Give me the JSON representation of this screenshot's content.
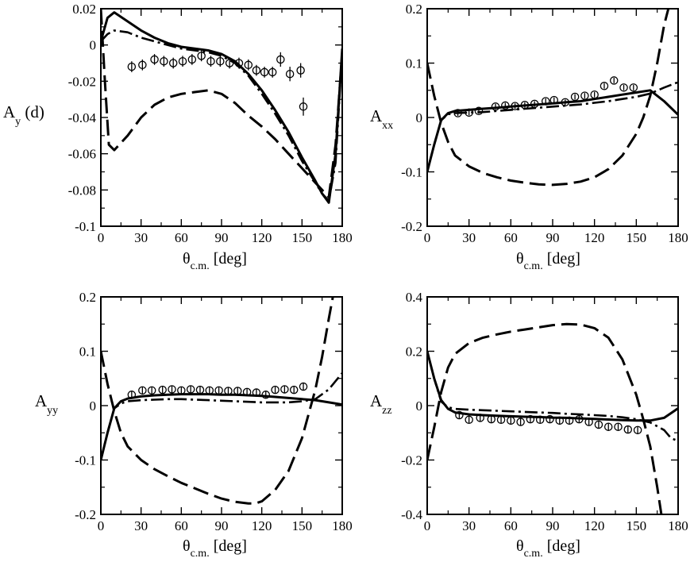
{
  "figure": {
    "background": "#ffffff",
    "ink": "#000000"
  },
  "chart_data": [
    {
      "type": "line",
      "panel": "top-left",
      "ylabel_main": "A",
      "ylabel_sub": "y",
      "ylabel_suffix": " (d)",
      "xlabel_main": "θ",
      "xlabel_sub": "c.m.",
      "xlabel_suffix": " [deg]",
      "xlim": [
        0,
        180
      ],
      "ylim": [
        -0.1,
        0.02
      ],
      "xticks": [
        0,
        30,
        60,
        90,
        120,
        150,
        180
      ],
      "xtick_labels": [
        "0",
        "30",
        "60",
        "90",
        "120",
        "150",
        "180"
      ],
      "yticks": [
        -0.1,
        -0.08,
        -0.06,
        -0.04,
        -0.02,
        0,
        0.02
      ],
      "ytick_labels": [
        "-0.1",
        "-0.08",
        "-0.06",
        "-0.04",
        "-0.02",
        "0",
        "0.02"
      ],
      "series": [
        {
          "name": "solid",
          "style": "solid",
          "x": [
            0,
            5,
            10,
            20,
            30,
            40,
            50,
            60,
            70,
            80,
            90,
            100,
            110,
            120,
            130,
            140,
            150,
            160,
            165,
            170,
            175,
            180
          ],
          "y": [
            0.002,
            0.015,
            0.018,
            0.013,
            0.008,
            0.004,
            0.001,
            -0.001,
            -0.002,
            -0.003,
            -0.005,
            -0.009,
            -0.016,
            -0.025,
            -0.036,
            -0.048,
            -0.062,
            -0.075,
            -0.082,
            -0.087,
            -0.06,
            -0.002
          ]
        },
        {
          "name": "dash-dot",
          "style": "dashdot",
          "x": [
            0,
            5,
            10,
            20,
            30,
            40,
            50,
            60,
            70,
            80,
            90,
            100,
            110,
            120,
            130,
            140,
            150,
            160,
            165,
            170,
            175,
            180
          ],
          "y": [
            0.002,
            0.006,
            0.008,
            0.007,
            0.004,
            0.002,
            0.0,
            -0.002,
            -0.003,
            -0.004,
            -0.006,
            -0.01,
            -0.017,
            -0.027,
            -0.038,
            -0.05,
            -0.064,
            -0.076,
            -0.082,
            -0.086,
            -0.065,
            -0.004
          ]
        },
        {
          "name": "dashed",
          "style": "dashed",
          "x": [
            0,
            3,
            6,
            10,
            20,
            30,
            40,
            50,
            60,
            70,
            80,
            90,
            100,
            110,
            120,
            130,
            140,
            150,
            160,
            165,
            170,
            175,
            180
          ],
          "y": [
            0.02,
            -0.02,
            -0.055,
            -0.058,
            -0.05,
            -0.04,
            -0.033,
            -0.029,
            -0.027,
            -0.026,
            -0.025,
            -0.027,
            -0.032,
            -0.039,
            -0.045,
            -0.052,
            -0.06,
            -0.068,
            -0.076,
            -0.08,
            -0.084,
            -0.055,
            -0.005
          ]
        }
      ],
      "points": {
        "x": [
          23,
          31,
          40,
          47,
          54,
          61,
          68,
          75,
          82,
          89,
          96,
          103,
          110,
          116,
          122,
          128,
          134,
          141,
          149
        ],
        "y": [
          -0.012,
          -0.011,
          -0.008,
          -0.009,
          -0.01,
          -0.009,
          -0.008,
          -0.006,
          -0.009,
          -0.009,
          -0.01,
          -0.01,
          -0.011,
          -0.014,
          -0.015,
          -0.015,
          -0.008,
          -0.016,
          -0.014
        ],
        "err": [
          0.003,
          0.003,
          0.003,
          0.003,
          0.003,
          0.003,
          0.003,
          0.003,
          0.003,
          0.003,
          0.003,
          0.003,
          0.003,
          0.003,
          0.003,
          0.003,
          0.004,
          0.004,
          0.004
        ]
      },
      "extra_point": {
        "x": 151,
        "y": -0.034,
        "err": 0.005
      }
    },
    {
      "type": "line",
      "panel": "top-right",
      "ylabel_main": "A",
      "ylabel_sub": "xx",
      "ylabel_suffix": "",
      "xlabel_main": "θ",
      "xlabel_sub": "c.m.",
      "xlabel_suffix": " [deg]",
      "xlim": [
        0,
        180
      ],
      "ylim": [
        -0.2,
        0.2
      ],
      "xticks": [
        0,
        30,
        60,
        90,
        120,
        150,
        180
      ],
      "xtick_labels": [
        "0",
        "30",
        "60",
        "90",
        "120",
        "150",
        "180"
      ],
      "yticks": [
        -0.2,
        -0.1,
        0,
        0.1,
        0.2
      ],
      "ytick_labels": [
        "-0.2",
        "-0.1",
        "0",
        "0.1",
        "0.2"
      ],
      "series": [
        {
          "name": "solid",
          "style": "solid",
          "x": [
            0,
            5,
            10,
            15,
            20,
            30,
            40,
            50,
            60,
            70,
            80,
            90,
            100,
            110,
            120,
            130,
            140,
            150,
            160,
            170,
            180
          ],
          "y": [
            -0.1,
            -0.05,
            -0.005,
            0.008,
            0.012,
            0.014,
            0.016,
            0.018,
            0.02,
            0.022,
            0.024,
            0.026,
            0.028,
            0.03,
            0.034,
            0.038,
            0.042,
            0.046,
            0.05,
            0.03,
            0.005
          ]
        },
        {
          "name": "dash-dot",
          "style": "dashdot",
          "x": [
            0,
            5,
            10,
            15,
            20,
            30,
            40,
            50,
            60,
            70,
            80,
            90,
            100,
            110,
            120,
            130,
            140,
            150,
            160,
            170,
            180
          ],
          "y": [
            -0.1,
            -0.05,
            -0.005,
            0.006,
            0.008,
            0.009,
            0.01,
            0.012,
            0.014,
            0.016,
            0.018,
            0.02,
            0.022,
            0.024,
            0.027,
            0.03,
            0.034,
            0.038,
            0.044,
            0.055,
            0.065
          ]
        },
        {
          "name": "dashed",
          "style": "dashed",
          "x": [
            0,
            5,
            10,
            15,
            20,
            30,
            40,
            50,
            60,
            70,
            80,
            90,
            100,
            110,
            120,
            130,
            140,
            150,
            155,
            160,
            165,
            170,
            173
          ],
          "y": [
            0.1,
            0.04,
            -0.01,
            -0.045,
            -0.07,
            -0.09,
            -0.102,
            -0.11,
            -0.116,
            -0.12,
            -0.123,
            -0.124,
            -0.122,
            -0.118,
            -0.11,
            -0.095,
            -0.07,
            -0.03,
            0.0,
            0.04,
            0.1,
            0.17,
            0.2
          ]
        }
      ],
      "points": {
        "x": [
          22,
          30,
          37,
          49,
          56,
          63,
          70,
          77,
          85,
          91,
          99,
          106,
          113,
          120,
          127,
          134,
          141,
          148
        ],
        "y": [
          0.008,
          0.009,
          0.012,
          0.02,
          0.022,
          0.021,
          0.023,
          0.025,
          0.03,
          0.032,
          0.028,
          0.038,
          0.04,
          0.042,
          0.058,
          0.068,
          0.055,
          0.055
        ],
        "err": [
          0.005,
          0.005,
          0.005,
          0.005,
          0.005,
          0.005,
          0.005,
          0.005,
          0.005,
          0.005,
          0.005,
          0.005,
          0.005,
          0.005,
          0.005,
          0.005,
          0.005,
          0.005
        ]
      }
    },
    {
      "type": "line",
      "panel": "bottom-left",
      "ylabel_main": "A",
      "ylabel_sub": "yy",
      "ylabel_suffix": "",
      "xlabel_main": "θ",
      "xlabel_sub": "c.m.",
      "xlabel_suffix": " [deg]",
      "xlim": [
        0,
        180
      ],
      "ylim": [
        -0.2,
        0.2
      ],
      "xticks": [
        0,
        30,
        60,
        90,
        120,
        150,
        180
      ],
      "xtick_labels": [
        "0",
        "30",
        "60",
        "90",
        "120",
        "150",
        "180"
      ],
      "yticks": [
        -0.2,
        -0.1,
        0,
        0.1,
        0.2
      ],
      "ytick_labels": [
        "-0.2",
        "-0.1",
        "0",
        "0.1",
        "0.2"
      ],
      "series": [
        {
          "name": "solid",
          "style": "solid",
          "x": [
            0,
            5,
            10,
            15,
            20,
            30,
            40,
            50,
            60,
            70,
            80,
            90,
            100,
            110,
            120,
            130,
            140,
            150,
            160,
            170,
            180
          ],
          "y": [
            -0.1,
            -0.05,
            -0.005,
            0.008,
            0.013,
            0.017,
            0.019,
            0.02,
            0.021,
            0.021,
            0.021,
            0.02,
            0.02,
            0.019,
            0.018,
            0.016,
            0.014,
            0.012,
            0.01,
            0.006,
            0.002
          ]
        },
        {
          "name": "dash-dot",
          "style": "dashdot",
          "x": [
            0,
            5,
            10,
            15,
            20,
            30,
            40,
            50,
            60,
            70,
            80,
            90,
            100,
            110,
            120,
            130,
            140,
            150,
            160,
            170,
            180
          ],
          "y": [
            -0.1,
            -0.05,
            -0.005,
            0.004,
            0.008,
            0.01,
            0.011,
            0.012,
            0.012,
            0.011,
            0.01,
            0.009,
            0.008,
            0.007,
            0.006,
            0.006,
            0.006,
            0.008,
            0.012,
            0.03,
            0.06
          ]
        },
        {
          "name": "dashed",
          "style": "dashed",
          "x": [
            0,
            5,
            10,
            15,
            20,
            30,
            40,
            50,
            60,
            70,
            80,
            90,
            100,
            110,
            115,
            120,
            130,
            140,
            150,
            160,
            165,
            170,
            173
          ],
          "y": [
            0.1,
            0.04,
            -0.01,
            -0.05,
            -0.075,
            -0.1,
            -0.117,
            -0.13,
            -0.142,
            -0.152,
            -0.162,
            -0.171,
            -0.177,
            -0.18,
            -0.18,
            -0.176,
            -0.155,
            -0.12,
            -0.06,
            0.03,
            0.09,
            0.16,
            0.2
          ]
        }
      ],
      "points": {
        "x": [
          23,
          31,
          38,
          46,
          53,
          60,
          67,
          74,
          81,
          88,
          95,
          102,
          109,
          116,
          123,
          130,
          137,
          144,
          151
        ],
        "y": [
          0.02,
          0.028,
          0.028,
          0.029,
          0.03,
          0.028,
          0.03,
          0.029,
          0.028,
          0.028,
          0.027,
          0.027,
          0.025,
          0.024,
          0.02,
          0.029,
          0.03,
          0.029,
          0.035
        ],
        "err": [
          0.006,
          0.006,
          0.006,
          0.006,
          0.006,
          0.006,
          0.006,
          0.006,
          0.006,
          0.006,
          0.006,
          0.006,
          0.006,
          0.006,
          0.006,
          0.006,
          0.006,
          0.006,
          0.006
        ]
      }
    },
    {
      "type": "line",
      "panel": "bottom-right",
      "ylabel_main": "A",
      "ylabel_sub": "zz",
      "ylabel_suffix": "",
      "xlabel_main": "θ",
      "xlabel_sub": "c.m.",
      "xlabel_suffix": " [deg]",
      "xlim": [
        0,
        180
      ],
      "ylim": [
        -0.4,
        0.4
      ],
      "xticks": [
        0,
        30,
        60,
        90,
        120,
        150,
        180
      ],
      "xtick_labels": [
        "0",
        "30",
        "60",
        "90",
        "120",
        "150",
        "180"
      ],
      "yticks": [
        -0.4,
        -0.2,
        0,
        0.2,
        0.4
      ],
      "ytick_labels": [
        "-0.4",
        "-0.2",
        "0",
        "0.2",
        "0.4"
      ],
      "series": [
        {
          "name": "solid",
          "style": "solid",
          "x": [
            0,
            5,
            10,
            15,
            20,
            30,
            40,
            50,
            60,
            70,
            80,
            90,
            100,
            110,
            120,
            130,
            140,
            150,
            160,
            170,
            180
          ],
          "y": [
            0.2,
            0.1,
            0.02,
            -0.012,
            -0.025,
            -0.032,
            -0.035,
            -0.037,
            -0.039,
            -0.041,
            -0.042,
            -0.044,
            -0.045,
            -0.047,
            -0.049,
            -0.051,
            -0.053,
            -0.055,
            -0.055,
            -0.045,
            -0.01
          ]
        },
        {
          "name": "dash-dot",
          "style": "dashdot",
          "x": [
            0,
            5,
            10,
            15,
            20,
            30,
            40,
            50,
            60,
            70,
            80,
            90,
            100,
            110,
            120,
            130,
            140,
            150,
            160,
            170,
            175,
            180
          ],
          "y": [
            0.2,
            0.1,
            0.015,
            -0.006,
            -0.012,
            -0.015,
            -0.017,
            -0.019,
            -0.021,
            -0.023,
            -0.025,
            -0.027,
            -0.03,
            -0.032,
            -0.035,
            -0.038,
            -0.043,
            -0.05,
            -0.062,
            -0.09,
            -0.12,
            -0.13
          ]
        },
        {
          "name": "dashed",
          "style": "dashed",
          "x": [
            0,
            5,
            10,
            15,
            20,
            30,
            40,
            50,
            60,
            70,
            80,
            90,
            100,
            110,
            120,
            130,
            140,
            150,
            155,
            160,
            165,
            168
          ],
          "y": [
            -0.2,
            -0.08,
            0.05,
            0.14,
            0.19,
            0.23,
            0.25,
            0.262,
            0.272,
            0.28,
            0.288,
            0.296,
            0.3,
            0.298,
            0.285,
            0.25,
            0.17,
            0.04,
            -0.05,
            -0.15,
            -0.3,
            -0.4
          ]
        }
      ],
      "points": {
        "x": [
          23,
          30,
          38,
          46,
          53,
          60,
          67,
          74,
          81,
          88,
          95,
          102,
          109,
          116,
          123,
          130,
          137,
          144,
          151
        ],
        "y": [
          -0.035,
          -0.052,
          -0.045,
          -0.05,
          -0.052,
          -0.055,
          -0.06,
          -0.05,
          -0.052,
          -0.05,
          -0.055,
          -0.055,
          -0.05,
          -0.06,
          -0.07,
          -0.078,
          -0.078,
          -0.088,
          -0.09
        ],
        "err": [
          0.012,
          0.012,
          0.012,
          0.012,
          0.012,
          0.012,
          0.012,
          0.012,
          0.012,
          0.012,
          0.012,
          0.012,
          0.012,
          0.012,
          0.012,
          0.012,
          0.012,
          0.012,
          0.012
        ]
      }
    }
  ]
}
